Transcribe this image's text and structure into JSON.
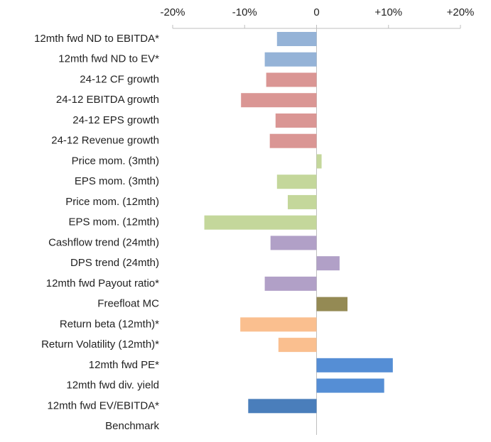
{
  "chart_data": {
    "type": "bar",
    "orientation": "horizontal",
    "categories": [
      "12mth fwd ND to EBITDA*",
      "12mth fwd ND to EV*",
      "24-12 CF growth",
      "24-12 EBITDA growth",
      "24-12 EPS growth",
      "24-12 Revenue growth",
      "Price mom. (3mth)",
      "EPS mom. (3mth)",
      "Price mom. (12mth)",
      "EPS mom. (12mth)",
      "Cashflow trend (24mth)",
      "DPS trend (24mth)",
      "12mth fwd Payout ratio*",
      "Freefloat MC",
      "Return beta (12mth)*",
      "Return Volatility (12mth)*",
      "12mth fwd PE*",
      "12mth fwd div. yield",
      "12mth fwd EV/EBITDA*",
      "Benchmark"
    ],
    "values": [
      -5.5,
      -7.2,
      -7.0,
      -10.5,
      -5.7,
      -6.5,
      0.7,
      -5.5,
      -4.0,
      -15.6,
      -6.4,
      3.2,
      -7.2,
      4.3,
      -10.6,
      -5.3,
      10.6,
      9.4,
      -9.5,
      null
    ],
    "colors": [
      "#95b3d7",
      "#95b3d7",
      "#da9694",
      "#da9694",
      "#da9694",
      "#da9694",
      "#c4d79b",
      "#c4d79b",
      "#c4d79b",
      "#c4d79b",
      "#b1a0c7",
      "#b1a0c7",
      "#b1a0c7",
      "#948a54",
      "#fabf8f",
      "#fabf8f",
      "#558ed5",
      "#558ed5",
      "#4a7ebb",
      "#4a7ebb"
    ],
    "xlim": [
      -20,
      20
    ],
    "xticks": [
      {
        "value": -20,
        "label": "-20%"
      },
      {
        "value": -10,
        "label": "-10%"
      },
      0,
      {
        "value": 10,
        "label": "+10%"
      },
      {
        "value": 20,
        "label": "+20%"
      }
    ]
  }
}
